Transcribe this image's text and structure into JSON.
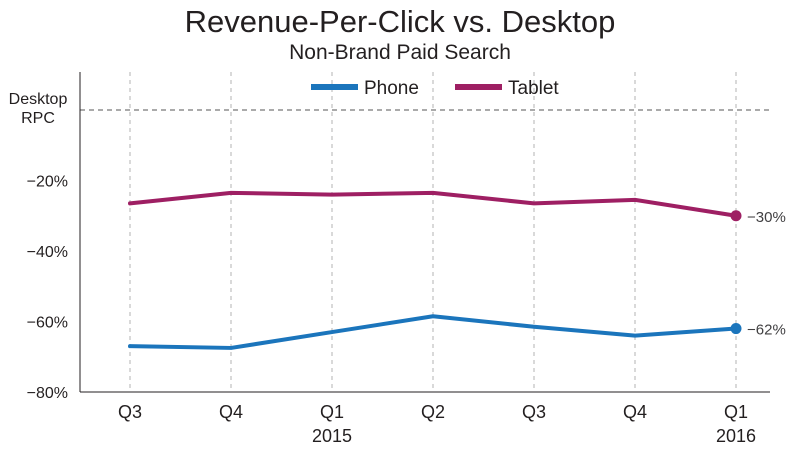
{
  "chart_data": {
    "type": "line",
    "title": "Revenue-Per-Click vs. Desktop",
    "subtitle": "Non-Brand Paid Search",
    "xlabel": "",
    "ylabel": "",
    "categories": [
      "Q3",
      "Q4",
      "Q1",
      "Q2",
      "Q3",
      "Q4",
      "Q1"
    ],
    "year_labels": [
      "",
      "",
      "2015",
      "",
      "",
      "",
      "2016"
    ],
    "y_ticks": [
      {
        "value": 0,
        "label": "Desktop RPC"
      },
      {
        "value": -20,
        "label": "−20%"
      },
      {
        "value": -40,
        "label": "−40%"
      },
      {
        "value": -60,
        "label": "−60%"
      },
      {
        "value": -80,
        "label": "−80%"
      }
    ],
    "ylim": [
      -80,
      10
    ],
    "grid": true,
    "legend_position": "top-center",
    "series": [
      {
        "name": "Phone",
        "color": "#1b75bc",
        "values": [
          -67,
          -67.5,
          -63,
          -58.5,
          -61.5,
          -64,
          -62
        ],
        "end_label": "−62%"
      },
      {
        "name": "Tablet",
        "color": "#9e1f63",
        "values": [
          -26.5,
          -23.5,
          -24,
          -23.5,
          -26.5,
          -25.5,
          -30
        ],
        "end_label": "−30%"
      }
    ]
  }
}
